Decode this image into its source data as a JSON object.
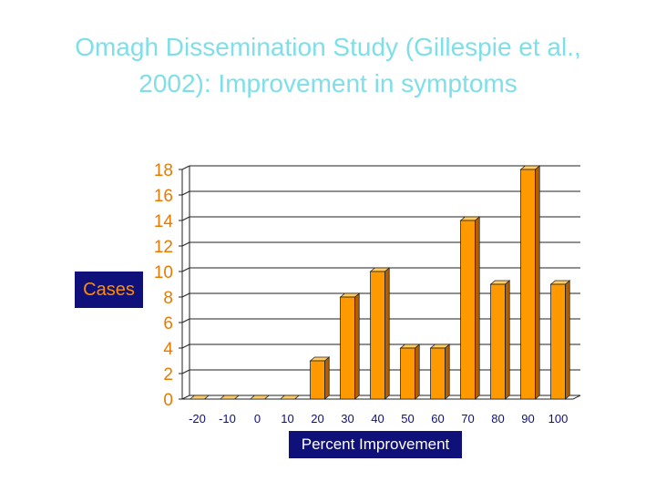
{
  "title": {
    "line1": "Omagh Dissemination Study (Gillespie et al.,",
    "line2": "2002): Improvement in symptoms"
  },
  "chart_data": {
    "type": "bar",
    "title": "Omagh Dissemination Study (Gillespie et al., 2002): Improvement in symptoms",
    "xlabel": "Percent Improvement",
    "ylabel": "Cases",
    "categories": [
      "-20",
      "-10",
      "0",
      "10",
      "20",
      "30",
      "40",
      "50",
      "60",
      "70",
      "80",
      "90",
      "100"
    ],
    "values": [
      0,
      0,
      0,
      0,
      3,
      8,
      10,
      4,
      4,
      14,
      9,
      18,
      9
    ],
    "yticks": [
      "0",
      "2",
      "4",
      "6",
      "8",
      "10",
      "12",
      "14",
      "16",
      "18"
    ],
    "ylim": [
      0,
      18
    ],
    "grid": true,
    "colors": {
      "bar_front": "#ff9900",
      "bar_top": "#ffcc66",
      "bar_side": "#b35f00",
      "outline": "#222222",
      "ytick_text": "#e87a00",
      "xtick_text": "#10107a",
      "label_box": "#10107a",
      "ylabel_text": "#ff8c00",
      "xlabel_text": "#ffffff"
    }
  }
}
